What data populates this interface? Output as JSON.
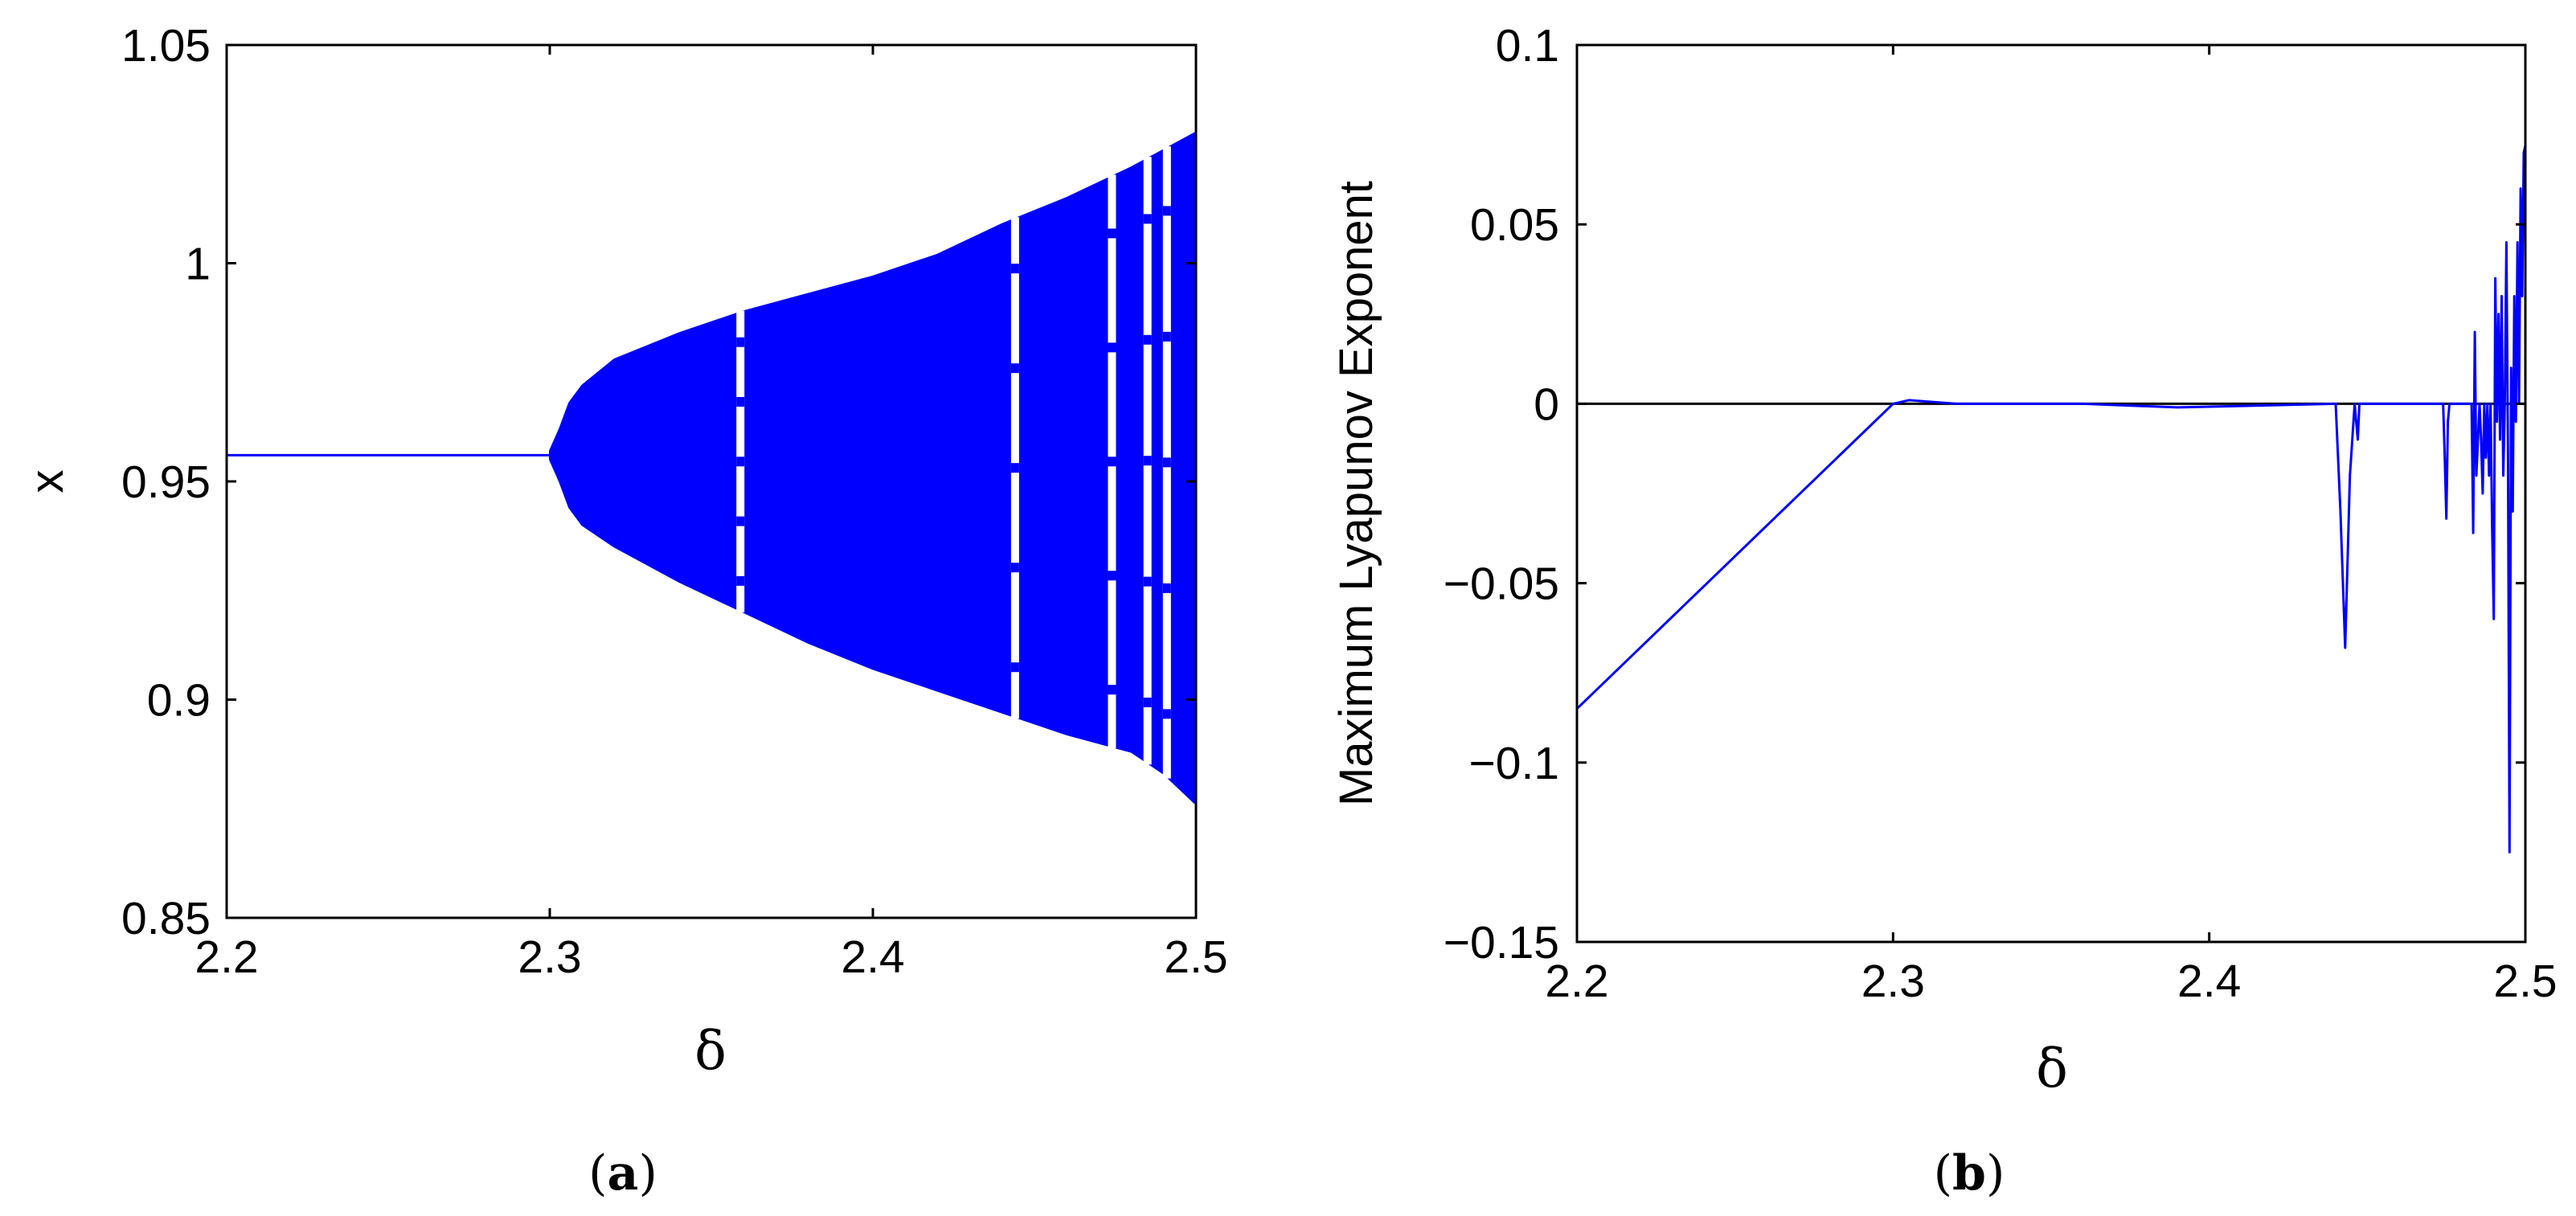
{
  "chart_data": [
    {
      "type": "scatter",
      "panel_label": {
        "open": "(",
        "letter": "a",
        "close": ")"
      },
      "xlabel": "δ",
      "ylabel": "x",
      "xlim": [
        2.2,
        2.5
      ],
      "ylim": [
        0.85,
        1.05
      ],
      "xticks": [
        2.2,
        2.3,
        2.4,
        2.5
      ],
      "xtick_labels": [
        "2.2",
        "2.3",
        "2.4",
        "2.5"
      ],
      "yticks": [
        0.85,
        0.9,
        0.95,
        1.0,
        1.05
      ],
      "ytick_labels": [
        "0.85",
        "0.9",
        "0.95",
        "1",
        "1.05"
      ],
      "grid": false,
      "series_color": "#0000ff",
      "fixed_point": {
        "x_start": 2.2,
        "x_end": 2.3,
        "y": 0.956
      },
      "envelope": {
        "x": [
          2.3,
          2.303,
          2.306,
          2.31,
          2.32,
          2.34,
          2.36,
          2.38,
          2.4,
          2.42,
          2.44,
          2.46,
          2.48,
          2.49,
          2.5
        ],
        "upper": [
          0.957,
          0.962,
          0.968,
          0.972,
          0.978,
          0.984,
          0.989,
          0.993,
          0.997,
          1.002,
          1.009,
          1.015,
          1.022,
          1.026,
          1.03
        ],
        "lower": [
          0.955,
          0.95,
          0.944,
          0.94,
          0.935,
          0.927,
          0.92,
          0.913,
          0.907,
          0.902,
          0.897,
          0.892,
          0.888,
          0.883,
          0.876
        ]
      },
      "periodic_windows": [
        2.359,
        2.444,
        2.474,
        2.485,
        2.491
      ]
    },
    {
      "type": "line",
      "panel_label": {
        "open": "(",
        "letter": "b",
        "close": ")"
      },
      "xlabel": "δ",
      "ylabel": "Maximum Lyapunov Exponent",
      "xlim": [
        2.2,
        2.5
      ],
      "ylim": [
        -0.15,
        0.1
      ],
      "xticks": [
        2.2,
        2.3,
        2.4,
        2.5
      ],
      "xtick_labels": [
        "2.2",
        "2.3",
        "2.4",
        "2.5"
      ],
      "yticks": [
        -0.15,
        -0.1,
        -0.05,
        0,
        0.05,
        0.1
      ],
      "ytick_labels": [
        "−0.15",
        "−0.1",
        "−0.05",
        "0",
        "0.05",
        "0.1"
      ],
      "grid": false,
      "zero_line": true,
      "series_color": "#0000ff",
      "x": [
        2.2,
        2.3,
        2.305,
        2.32,
        2.36,
        2.39,
        2.44,
        2.4415,
        2.443,
        2.4445,
        2.446,
        2.447,
        2.4475,
        2.46,
        2.474,
        2.4745,
        2.475,
        2.4755,
        2.476,
        2.483,
        2.4835,
        2.484,
        2.4845,
        2.4855,
        2.486,
        2.4865,
        2.487,
        2.4875,
        2.488,
        2.4885,
        2.489,
        2.4895,
        2.49,
        2.4905,
        2.491,
        2.4915,
        2.492,
        2.4925,
        2.493,
        2.4935,
        2.494,
        2.4945,
        2.495,
        2.4955,
        2.496,
        2.4965,
        2.497,
        2.4975,
        2.498,
        2.4985,
        2.499,
        2.4995,
        2.5
      ],
      "y": [
        -0.085,
        0.0,
        0.001,
        0.0,
        0.0,
        -0.001,
        0.0,
        -0.03,
        -0.068,
        -0.02,
        0.0,
        -0.01,
        0.0,
        0.0,
        0.0,
        -0.015,
        -0.032,
        -0.005,
        0.0,
        0.0,
        -0.036,
        0.02,
        -0.02,
        0.0,
        -0.01,
        -0.025,
        0.0,
        -0.015,
        0.0,
        -0.02,
        0.0,
        -0.035,
        -0.06,
        0.035,
        -0.005,
        0.025,
        -0.01,
        0.03,
        -0.02,
        0.0,
        0.045,
        -0.015,
        -0.125,
        0.01,
        -0.03,
        0.03,
        -0.005,
        0.045,
        0.0,
        0.06,
        0.03,
        0.07,
        0.072
      ]
    }
  ]
}
